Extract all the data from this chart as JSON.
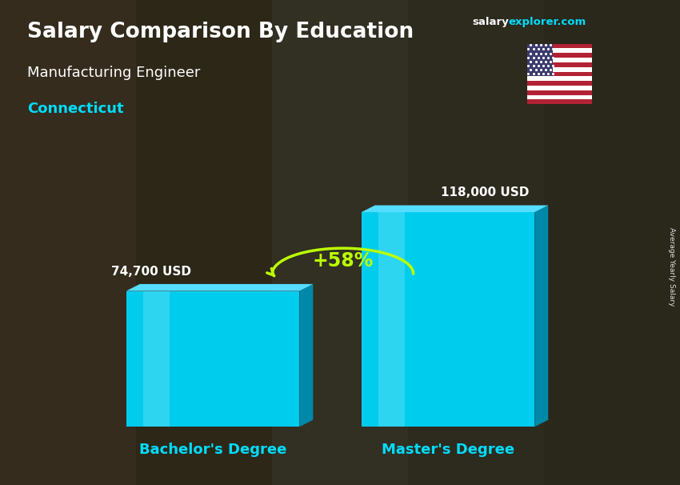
{
  "title_main": "Salary Comparison By Education",
  "title_sub": "Manufacturing Engineer",
  "title_location": "Connecticut",
  "website_salary": "salary",
  "website_explorer": "explorer.com",
  "categories": [
    "Bachelor's Degree",
    "Master's Degree"
  ],
  "values": [
    74700,
    118000
  ],
  "labels": [
    "74,700 USD",
    "118,000 USD"
  ],
  "pct_change": "+58%",
  "bar_color_front": "#00CCEE",
  "bar_color_side": "#0088AA",
  "bar_color_top": "#55DDFF",
  "text_color_white": "#FFFFFF",
  "text_color_cyan": "#00DDFF",
  "text_color_green": "#BBFF00",
  "side_label": "Average Yearly Salary",
  "ylim": [
    0,
    160000
  ],
  "bar_width": 0.28,
  "bar_positions": [
    0.3,
    0.68
  ]
}
